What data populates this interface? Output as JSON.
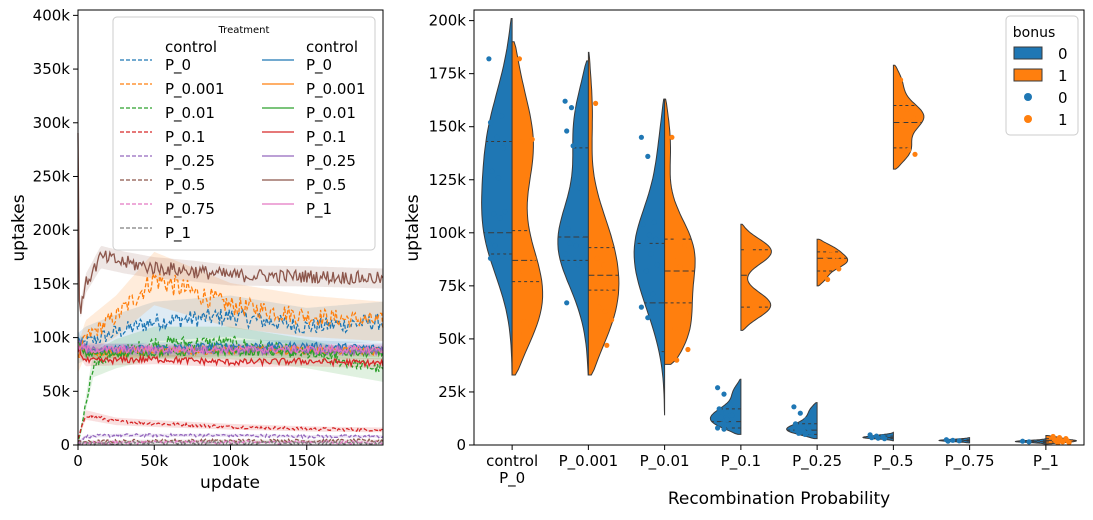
{
  "chart_data": [
    {
      "type": "line",
      "xlabel": "update",
      "ylabel": "uptakes",
      "xlim": [
        0,
        200000
      ],
      "ylim": [
        0,
        405000
      ],
      "x_ticks": [
        "0",
        "50k",
        "100k",
        "150k"
      ],
      "x_tick_values": [
        0,
        50000,
        100000,
        150000
      ],
      "y_ticks": [
        "0",
        "50k",
        "100k",
        "150k",
        "200k",
        "250k",
        "300k",
        "350k",
        "400k"
      ],
      "y_tick_values": [
        0,
        50000,
        100000,
        150000,
        200000,
        250000,
        300000,
        350000,
        400000
      ],
      "legend": {
        "title": "Treatment",
        "placement": "upper-center",
        "left_column": [
          "control\nP_0",
          "P_0.001",
          "P_0.01",
          "P_0.1",
          "P_0.25",
          "P_0.5",
          "P_0.75",
          "P_1"
        ],
        "right_column": [
          "control\nP_0",
          "P_0.001",
          "P_0.01",
          "P_0.1",
          "P_0.25",
          "P_0.5",
          "P_1"
        ]
      },
      "series": [
        {
          "group": "dashed",
          "color": "#1f77b4",
          "x": [
            0,
            5000,
            25000,
            50000,
            100000,
            150000,
            200000
          ],
          "values": [
            90000,
            95000,
            105000,
            115000,
            120000,
            110000,
            115000
          ]
        },
        {
          "group": "dashed",
          "color": "#ff7f0e",
          "x": [
            0,
            5000,
            25000,
            50000,
            100000,
            150000,
            200000
          ],
          "values": [
            80000,
            100000,
            120000,
            155000,
            130000,
            120000,
            115000
          ]
        },
        {
          "group": "dashed",
          "color": "#2ca02c",
          "x": [
            0,
            10000,
            25000,
            50000,
            100000,
            150000,
            200000
          ],
          "values": [
            0,
            75000,
            85000,
            95000,
            95000,
            85000,
            70000
          ]
        },
        {
          "group": "dashed",
          "color": "#d62728",
          "x": [
            0,
            5000,
            25000,
            50000,
            100000,
            150000,
            200000
          ],
          "values": [
            5000,
            28000,
            22000,
            20000,
            17000,
            15000,
            14000
          ]
        },
        {
          "group": "dashed",
          "color": "#9467bd",
          "x": [
            0,
            5000,
            25000,
            50000,
            100000,
            150000,
            200000
          ],
          "values": [
            3000,
            8000,
            9000,
            9000,
            9000,
            8000,
            8000
          ]
        },
        {
          "group": "dashed",
          "color": "#8c564b",
          "x": [
            0,
            50000,
            100000,
            150000,
            200000
          ],
          "values": [
            3000,
            4000,
            4000,
            4000,
            4000
          ]
        },
        {
          "group": "dashed",
          "color": "#e377c2",
          "x": [
            0,
            50000,
            100000,
            150000,
            200000
          ],
          "values": [
            2000,
            2500,
            2500,
            2500,
            2500
          ]
        },
        {
          "group": "dashed",
          "color": "#7f7f7f",
          "x": [
            0,
            50000,
            100000,
            150000,
            200000
          ],
          "values": [
            1500,
            2000,
            2000,
            2000,
            2000
          ]
        },
        {
          "group": "solid",
          "color": "#1f77b4",
          "x": [
            0,
            5000,
            50000,
            100000,
            150000,
            200000
          ],
          "values": [
            100000,
            88000,
            90000,
            92000,
            92000,
            90000
          ]
        },
        {
          "group": "solid",
          "color": "#ff7f0e",
          "x": [
            0,
            5000,
            50000,
            100000,
            150000,
            200000
          ],
          "values": [
            95000,
            86000,
            87000,
            88000,
            88000,
            87000
          ]
        },
        {
          "group": "solid",
          "color": "#2ca02c",
          "x": [
            0,
            5000,
            50000,
            100000,
            150000,
            200000
          ],
          "values": [
            95000,
            85000,
            86000,
            87000,
            86000,
            85000
          ]
        },
        {
          "group": "solid",
          "color": "#d62728",
          "x": [
            0,
            5000,
            50000,
            100000,
            150000,
            200000
          ],
          "values": [
            90000,
            78000,
            80000,
            77000,
            78000,
            76000
          ]
        },
        {
          "group": "solid",
          "color": "#9467bd",
          "x": [
            0,
            5000,
            50000,
            100000,
            150000,
            200000
          ],
          "values": [
            95000,
            90000,
            88000,
            88000,
            88000,
            88000
          ]
        },
        {
          "group": "solid",
          "color": "#8c564b",
          "x": [
            0,
            1000,
            5000,
            15000,
            30000,
            50000,
            75000,
            100000,
            150000,
            200000
          ],
          "values": [
            290000,
            120000,
            150000,
            175000,
            170000,
            165000,
            162000,
            158000,
            157000,
            155000
          ]
        },
        {
          "group": "solid",
          "color": "#e377c2",
          "x": [
            0,
            5000,
            50000,
            100000,
            150000,
            200000
          ],
          "values": [
            92000,
            89000,
            89000,
            89000,
            89000,
            89000
          ]
        }
      ]
    },
    {
      "type": "violin",
      "xlabel": "Recombination Probability",
      "ylabel": "uptakes",
      "categories": [
        "control\nP_0",
        "P_0.001",
        "P_0.01",
        "P_0.1",
        "P_0.25",
        "P_0.5",
        "P_0.75",
        "P_1"
      ],
      "ylim": [
        0,
        205000
      ],
      "y_ticks": [
        "0",
        "25k",
        "50k",
        "75k",
        "100k",
        "125k",
        "150k",
        "175k",
        "200k"
      ],
      "y_tick_values": [
        0,
        25000,
        50000,
        75000,
        100000,
        125000,
        150000,
        175000,
        200000
      ],
      "legend": {
        "title": "bonus",
        "placement": "top-right",
        "entries": [
          {
            "kind": "violin",
            "label": "0",
            "color": "#1f77b4"
          },
          {
            "kind": "violin",
            "label": "1",
            "color": "#ff7f0e"
          },
          {
            "kind": "point",
            "label": "0",
            "color": "#1f77b4"
          },
          {
            "kind": "point",
            "label": "1",
            "color": "#ff7f0e"
          }
        ]
      },
      "hues": [
        {
          "name": "0",
          "color": "#1f77b4",
          "points": [
            [
              182000,
              157000,
              155000,
              152000,
              145000,
              140000,
              129000,
              126000,
              110000,
              109000,
              107000,
              95000,
              94000,
              89000,
              88000
            ],
            [
              162000,
              159000,
              158000,
              148000,
              141000,
              121000,
              102000,
              100000,
              99000,
              95000,
              94000,
              90000,
              88000,
              85000,
              67000
            ],
            [
              145000,
              136000,
              105000,
              104000,
              99000,
              97000,
              95000,
              90000,
              85000,
              82000,
              71000,
              65000,
              60000
            ],
            [
              27000,
              24000,
              19000,
              17000,
              15000,
              14000,
              13000,
              12000,
              11000,
              10000,
              9000,
              8000,
              7500
            ],
            [
              18000,
              15000,
              12000,
              10000,
              8500,
              8000,
              7000,
              6500,
              6000,
              5500,
              5000
            ],
            [
              4800,
              4200,
              3800,
              3500,
              3200,
              3000
            ],
            [
              2500,
              2200,
              2000,
              1800
            ],
            [
              1800,
              1500
            ]
          ],
          "violins": [
            {
              "lo": 33000,
              "hi": 201000,
              "q1": 90000,
              "med": 100000,
              "q3": 143000
            },
            {
              "lo": 33000,
              "hi": 181000,
              "q1": 87000,
              "med": 98000,
              "q3": 140000
            },
            {
              "lo": 14000,
              "hi": 163000,
              "q1": 44000,
              "med": 67000,
              "q3": 95000
            },
            {
              "lo": 5000,
              "hi": 31000,
              "q1": 8000,
              "med": 11000,
              "q3": 17000
            },
            {
              "lo": 3000,
              "hi": 20000,
              "q1": 5000,
              "med": 7000,
              "q3": 10000
            },
            {
              "lo": 2000,
              "hi": 6000,
              "q1": 3000,
              "med": 3500,
              "q3": 4200
            },
            {
              "lo": 1000,
              "hi": 3500,
              "q1": 1800,
              "med": 2100,
              "q3": 2500
            },
            {
              "lo": 500,
              "hi": 3000,
              "q1": 1200,
              "med": 1600,
              "q3": 2000
            }
          ]
        },
        {
          "name": "1",
          "color": "#ff7f0e",
          "points": [
            [
              182000,
              155000,
              144000,
              143000,
              127000,
              88000,
              82000,
              75000,
              62000,
              58000,
              56000,
              53000
            ],
            [
              161000,
              103000,
              97000,
              88000,
              85000,
              74000,
              65000,
              63000,
              59000,
              55000,
              47000
            ],
            [
              145000,
              97000,
              94000,
              87000,
              84000,
              62000,
              55000,
              54000,
              45000,
              40000
            ],
            [
              92000,
              65000
            ],
            [
              94000,
              92000,
              89000,
              87000,
              86000,
              83000,
              78000
            ],
            [
              172000,
              158000,
              154000,
              153000,
              139000,
              137000
            ],
            [],
            [
              4000,
              3500,
              3000,
              2500,
              2200,
              2000,
              1800,
              1500,
              1200,
              1000
            ]
          ],
          "violins": [
            {
              "lo": 33000,
              "hi": 190000,
              "q1": 77000,
              "med": 87000,
              "q3": 101000
            },
            {
              "lo": 33000,
              "hi": 185000,
              "q1": 73000,
              "med": 80000,
              "q3": 93000
            },
            {
              "lo": 38000,
              "hi": 163000,
              "q1": 67000,
              "med": 82000,
              "q3": 97000
            },
            {
              "lo": 54000,
              "hi": 104000,
              "q1": 65000,
              "med": 80000,
              "q3": 92000
            },
            {
              "lo": 75000,
              "hi": 97000,
              "q1": 82000,
              "med": 88000,
              "q3": 91000
            },
            {
              "lo": 130000,
              "hi": 179000,
              "q1": 140000,
              "med": 152000,
              "q3": 160000
            },
            null,
            {
              "lo": 500,
              "hi": 4500,
              "q1": 1500,
              "med": 2200,
              "q3": 3000
            }
          ]
        }
      ]
    }
  ]
}
